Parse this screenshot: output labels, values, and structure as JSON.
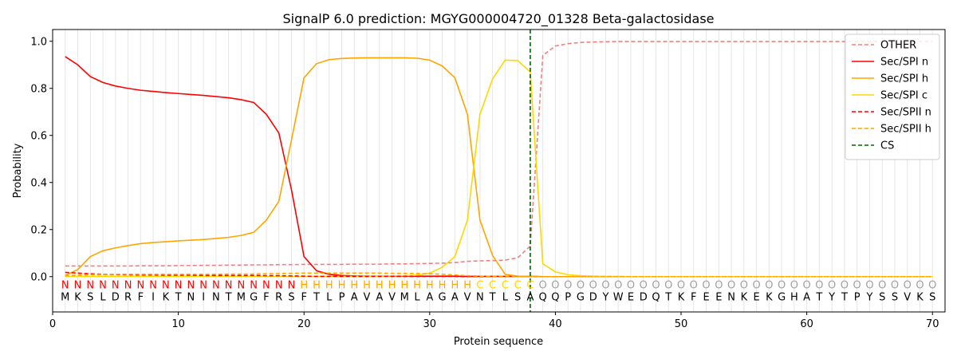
{
  "chart_data": {
    "type": "line",
    "title": "SignalP 6.0 prediction: MGYG000004720_01328 Beta-galactosidase",
    "xlabel": "Protein sequence",
    "ylabel": "Probability",
    "xlim": [
      0,
      71
    ],
    "ylim": [
      -0.15,
      1.05
    ],
    "xticks": [
      0,
      10,
      20,
      30,
      40,
      50,
      60,
      70
    ],
    "yticks": [
      0.0,
      0.2,
      0.4,
      0.6,
      0.8,
      1.0
    ],
    "ytick_labels": [
      "0.0",
      "0.2",
      "0.4",
      "0.6",
      "0.8",
      "1.0"
    ],
    "grid": "vertical lines at each residue",
    "legend_position": "upper right",
    "sequence": [
      "M",
      "K",
      "S",
      "L",
      "D",
      "R",
      "F",
      "I",
      "K",
      "T",
      "N",
      "I",
      "N",
      "T",
      "M",
      "G",
      "F",
      "R",
      "S",
      "F",
      "T",
      "L",
      "P",
      "A",
      "V",
      "A",
      "V",
      "M",
      "L",
      "A",
      "G",
      "A",
      "V",
      "N",
      "T",
      "L",
      "S",
      "A",
      "Q",
      "Q",
      "P",
      "G",
      "D",
      "Y",
      "W",
      "E",
      "D",
      "Q",
      "T",
      "K",
      "F",
      "E",
      "E",
      "N",
      "K",
      "E",
      "K",
      "G",
      "H",
      "A",
      "T",
      "Y",
      "T",
      "P",
      "Y",
      "S",
      "S",
      "V",
      "K",
      "S"
    ],
    "region_labels": [
      "N",
      "N",
      "N",
      "N",
      "N",
      "N",
      "N",
      "N",
      "N",
      "N",
      "N",
      "N",
      "N",
      "N",
      "N",
      "N",
      "N",
      "N",
      "N",
      "H",
      "H",
      "H",
      "H",
      "H",
      "H",
      "H",
      "H",
      "H",
      "H",
      "H",
      "H",
      "H",
      "H",
      "C",
      "C",
      "C",
      "C",
      "C",
      "O",
      "O",
      "O",
      "O",
      "O",
      "O",
      "O",
      "O",
      "O",
      "O",
      "O",
      "O",
      "O",
      "O",
      "O",
      "O",
      "O",
      "O",
      "O",
      "O",
      "O",
      "O",
      "O",
      "O",
      "O",
      "O",
      "O",
      "O",
      "O",
      "O",
      "O",
      "O"
    ],
    "region_colors": {
      "N": "#ff0000",
      "H": "#ffa500",
      "C": "#ffd700",
      "O": "#a0a0a0"
    },
    "cleavage_site": 38,
    "series": [
      {
        "name": "OTHER",
        "color": "#f08080",
        "dash": "dashed",
        "values": [
          0.045,
          0.045,
          0.045,
          0.045,
          0.045,
          0.045,
          0.046,
          0.046,
          0.046,
          0.047,
          0.047,
          0.048,
          0.048,
          0.049,
          0.049,
          0.05,
          0.05,
          0.051,
          0.051,
          0.052,
          0.052,
          0.052,
          0.052,
          0.053,
          0.053,
          0.053,
          0.054,
          0.054,
          0.055,
          0.056,
          0.057,
          0.06,
          0.065,
          0.067,
          0.068,
          0.07,
          0.08,
          0.13,
          0.94,
          0.98,
          0.99,
          0.995,
          0.997,
          0.998,
          0.999,
          0.999,
          0.999,
          0.999,
          0.999,
          0.999,
          0.999,
          0.999,
          0.999,
          0.999,
          0.999,
          0.999,
          0.999,
          0.999,
          0.999,
          0.999,
          0.999,
          0.999,
          0.999,
          0.999,
          0.999,
          0.999,
          0.999,
          0.999,
          0.999,
          0.999
        ]
      },
      {
        "name": "Sec/SPI n",
        "color": "#ff0000",
        "dash": "solid",
        "values": [
          0.935,
          0.9,
          0.85,
          0.825,
          0.81,
          0.8,
          0.792,
          0.787,
          0.782,
          0.778,
          0.774,
          0.77,
          0.765,
          0.76,
          0.752,
          0.74,
          0.69,
          0.61,
          0.37,
          0.085,
          0.025,
          0.01,
          0.005,
          0.003,
          0.002,
          0.002,
          0.002,
          0.002,
          0.002,
          0.002,
          0.002,
          0.002,
          0.001,
          0.001,
          0.001,
          0.001,
          0.001,
          0.001,
          0.0,
          0.0,
          0.0,
          0.0,
          0.0,
          0.0,
          0.0,
          0.0,
          0.0,
          0.0,
          0.0,
          0.0,
          0.0,
          0.0,
          0.0,
          0.0,
          0.0,
          0.0,
          0.0,
          0.0,
          0.0,
          0.0,
          0.0,
          0.0,
          0.0,
          0.0,
          0.0,
          0.0,
          0.0,
          0.0,
          0.0,
          0.0
        ]
      },
      {
        "name": "Sec/SPI h",
        "color": "#ffa500",
        "dash": "solid",
        "values": [
          0.005,
          0.03,
          0.085,
          0.11,
          0.122,
          0.132,
          0.14,
          0.145,
          0.148,
          0.152,
          0.155,
          0.158,
          0.162,
          0.167,
          0.175,
          0.188,
          0.24,
          0.32,
          0.58,
          0.845,
          0.905,
          0.922,
          0.927,
          0.929,
          0.93,
          0.93,
          0.93,
          0.93,
          0.928,
          0.92,
          0.895,
          0.845,
          0.69,
          0.24,
          0.09,
          0.01,
          0.002,
          0.001,
          0.0,
          0.0,
          0.0,
          0.0,
          0.0,
          0.0,
          0.0,
          0.0,
          0.0,
          0.0,
          0.0,
          0.0,
          0.0,
          0.0,
          0.0,
          0.0,
          0.0,
          0.0,
          0.0,
          0.0,
          0.0,
          0.0,
          0.0,
          0.0,
          0.0,
          0.0,
          0.0,
          0.0,
          0.0,
          0.0,
          0.0,
          0.0
        ]
      },
      {
        "name": "Sec/SPI c",
        "color": "#ffd700",
        "dash": "solid",
        "values": [
          0.001,
          0.001,
          0.001,
          0.001,
          0.001,
          0.001,
          0.001,
          0.001,
          0.001,
          0.001,
          0.001,
          0.001,
          0.001,
          0.001,
          0.001,
          0.001,
          0.001,
          0.001,
          0.001,
          0.001,
          0.001,
          0.001,
          0.001,
          0.001,
          0.001,
          0.002,
          0.003,
          0.004,
          0.006,
          0.015,
          0.04,
          0.085,
          0.24,
          0.69,
          0.84,
          0.92,
          0.918,
          0.87,
          0.055,
          0.02,
          0.008,
          0.004,
          0.002,
          0.001,
          0.001,
          0.0,
          0.0,
          0.0,
          0.0,
          0.0,
          0.0,
          0.0,
          0.0,
          0.0,
          0.0,
          0.0,
          0.0,
          0.0,
          0.0,
          0.0,
          0.0,
          0.0,
          0.0,
          0.0,
          0.0,
          0.0,
          0.0,
          0.0,
          0.0,
          0.0
        ]
      },
      {
        "name": "Sec/SPII n",
        "color": "#ff0000",
        "dash": "dashed",
        "values": [
          0.018,
          0.015,
          0.012,
          0.01,
          0.009,
          0.008,
          0.007,
          0.007,
          0.006,
          0.006,
          0.006,
          0.005,
          0.005,
          0.005,
          0.005,
          0.005,
          0.004,
          0.004,
          0.003,
          0.002,
          0.001,
          0.001,
          0.001,
          0.001,
          0.001,
          0.001,
          0.001,
          0.001,
          0.001,
          0.001,
          0.001,
          0.001,
          0.0,
          0.0,
          0.0,
          0.0,
          0.0,
          0.0,
          0.0,
          0.0,
          0.0,
          0.0,
          0.0,
          0.0,
          0.0,
          0.0,
          0.0,
          0.0,
          0.0,
          0.0,
          0.0,
          0.0,
          0.0,
          0.0,
          0.0,
          0.0,
          0.0,
          0.0,
          0.0,
          0.0,
          0.0,
          0.0,
          0.0,
          0.0,
          0.0,
          0.0,
          0.0,
          0.0,
          0.0,
          0.0
        ]
      },
      {
        "name": "Sec/SPII h",
        "color": "#ffa500",
        "dash": "dashed",
        "values": [
          0.004,
          0.006,
          0.008,
          0.009,
          0.01,
          0.01,
          0.01,
          0.01,
          0.01,
          0.01,
          0.01,
          0.01,
          0.01,
          0.011,
          0.011,
          0.011,
          0.012,
          0.013,
          0.014,
          0.015,
          0.015,
          0.015,
          0.015,
          0.015,
          0.015,
          0.015,
          0.014,
          0.014,
          0.013,
          0.012,
          0.01,
          0.007,
          0.004,
          0.002,
          0.001,
          0.001,
          0.0,
          0.0,
          0.0,
          0.0,
          0.0,
          0.0,
          0.0,
          0.0,
          0.0,
          0.0,
          0.0,
          0.0,
          0.0,
          0.0,
          0.0,
          0.0,
          0.0,
          0.0,
          0.0,
          0.0,
          0.0,
          0.0,
          0.0,
          0.0,
          0.0,
          0.0,
          0.0,
          0.0,
          0.0,
          0.0,
          0.0,
          0.0,
          0.0,
          0.0
        ]
      }
    ],
    "legend": [
      {
        "label": "OTHER",
        "color": "#f08080",
        "dash": "dashed"
      },
      {
        "label": "Sec/SPI n",
        "color": "#ff0000",
        "dash": "solid"
      },
      {
        "label": "Sec/SPI h",
        "color": "#ffa500",
        "dash": "solid"
      },
      {
        "label": "Sec/SPI c",
        "color": "#ffd700",
        "dash": "solid"
      },
      {
        "label": "Sec/SPII n",
        "color": "#ff0000",
        "dash": "dashed"
      },
      {
        "label": "Sec/SPII h",
        "color": "#ffa500",
        "dash": "dashed"
      },
      {
        "label": "CS",
        "color": "#006400",
        "dash": "dashed"
      }
    ]
  }
}
